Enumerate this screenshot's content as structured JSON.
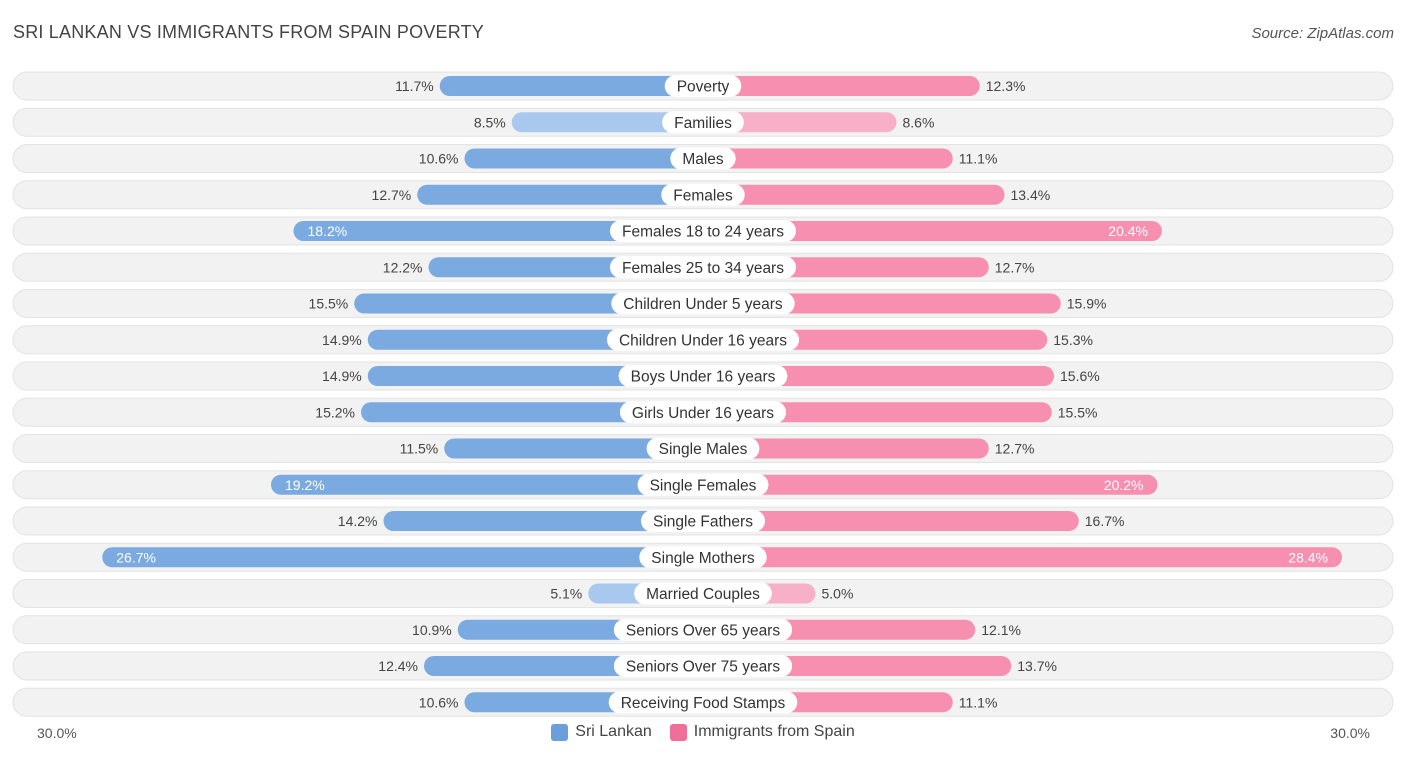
{
  "title": "SRI LANKAN VS IMMIGRANTS FROM SPAIN POVERTY",
  "source": "Source: ZipAtlas.com",
  "axis": {
    "left_label": "30.0%",
    "right_label": "30.0%"
  },
  "legend": [
    {
      "label": "Sri Lankan",
      "color": "#6a9fdc"
    },
    {
      "label": "Immigrants from Spain",
      "color": "#f06f98"
    }
  ],
  "colors": {
    "left": "#7aaae0",
    "right": "#f68fb0",
    "left_light": "#a9c8ed",
    "right_light": "#f8b0c8",
    "row_bg": "#f2f2f2"
  },
  "chart_data": {
    "type": "bar",
    "orientation": "diverging-horizontal",
    "xlim": [
      -30,
      30
    ],
    "categories": [
      "Poverty",
      "Families",
      "Males",
      "Females",
      "Females 18 to 24 years",
      "Females 25 to 34 years",
      "Children Under 5 years",
      "Children Under 16 years",
      "Boys Under 16 years",
      "Girls Under 16 years",
      "Single Males",
      "Single Females",
      "Single Fathers",
      "Single Mothers",
      "Married Couples",
      "Seniors Over 65 years",
      "Seniors Over 75 years",
      "Receiving Food Stamps"
    ],
    "series": [
      {
        "name": "Sri Lankan",
        "values": [
          11.7,
          8.5,
          10.6,
          12.7,
          18.2,
          12.2,
          15.5,
          14.9,
          14.9,
          15.2,
          11.5,
          19.2,
          14.2,
          26.7,
          5.1,
          10.9,
          12.4,
          10.6
        ],
        "labels": [
          "11.7%",
          "8.5%",
          "10.6%",
          "12.7%",
          "18.2%",
          "12.2%",
          "15.5%",
          "14.9%",
          "14.9%",
          "15.2%",
          "11.5%",
          "19.2%",
          "14.2%",
          "26.7%",
          "5.1%",
          "10.9%",
          "12.4%",
          "10.6%"
        ]
      },
      {
        "name": "Immigrants from Spain",
        "values": [
          12.3,
          8.6,
          11.1,
          13.4,
          20.4,
          12.7,
          15.9,
          15.3,
          15.6,
          15.5,
          12.7,
          20.2,
          16.7,
          28.4,
          5.0,
          12.1,
          13.7,
          11.1
        ],
        "labels": [
          "12.3%",
          "8.6%",
          "11.1%",
          "13.4%",
          "20.4%",
          "12.7%",
          "15.9%",
          "15.3%",
          "15.6%",
          "15.5%",
          "12.7%",
          "20.2%",
          "16.7%",
          "28.4%",
          "5.0%",
          "12.1%",
          "13.7%",
          "11.1%"
        ]
      }
    ]
  }
}
